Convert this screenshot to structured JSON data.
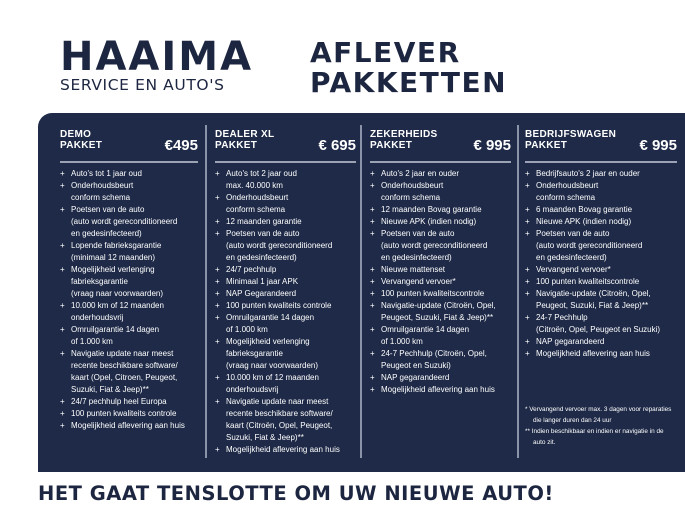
{
  "brand": {
    "name": "HAAIMA",
    "subtitle": "SERVICE EN AUTO'S"
  },
  "title": {
    "line1": "AFLEVER",
    "line2": "PAKKETTEN"
  },
  "packages": [
    {
      "name1": "DEMO",
      "name2": "PAKKET",
      "price": "€495",
      "items": [
        "Auto's tot 1 jaar oud",
        "Onderhoudsbeurt\nconform schema",
        "Poetsen van de auto\n(auto wordt gereconditioneerd\nen gedesinfecteerd)",
        "Lopende fabrieksgarantie\n(minimaal 12 maanden)",
        "Mogelijkheid verlenging\nfabrieksgarantie\n(vraag naar voorwaarden)",
        "10.000 km of 12 maanden\nonderhoudsvrij",
        "Omruilgarantie 14 dagen\nof 1.000 km",
        "Navigatie update naar meest\nrecente beschikbare software/\nkaart (Opel, Citroen, Peugeot,\nSuzuki, Fiat & Jeep)**",
        "24/7 pechhulp heel Europa",
        "100 punten kwaliteits controle",
        "Mogelijkheid aflevering aan huis"
      ]
    },
    {
      "name1": "DEALER XL",
      "name2": "PAKKET",
      "price": "€ 695",
      "items": [
        "Auto's tot 2 jaar oud\nmax. 40.000 km",
        "Onderhoudsbeurt\nconform schema",
        "12 maanden garantie",
        "Poetsen van de auto\n(auto wordt gereconditioneerd\nen gedesinfecteerd)",
        "24/7 pechhulp",
        "Minimaal 1 jaar APK",
        "NAP Gegarandeerd",
        "100 punten kwaliteits controle",
        "Omruilgarantie 14 dagen\nof 1.000 km",
        "Mogelijkheid verlenging\nfabrieksgarantie\n(vraag naar voorwaarden)",
        "10.000 km of 12 maanden\nonderhoudsvrij",
        "Navigatie update naar meest\nrecente beschikbare software/\nkaart (Citroën, Opel, Peugeot,\nSuzuki, Fiat & Jeep)**",
        "Mogelijkheid aflevering aan huis"
      ]
    },
    {
      "name1": "ZEKERHEIDS",
      "name2": "PAKKET",
      "price": "€ 995",
      "items": [
        "Auto's 2 jaar en ouder",
        "Onderhoudsbeurt\nconform schema",
        "12 maanden Bovag garantie",
        "Nieuwe APK (indien nodig)",
        "Poetsen van de auto\n(auto wordt gereconditioneerd\nen gedesinfecteerd)",
        "Nieuwe mattenset",
        "Vervangend vervoer*",
        "100 punten kwaliteitscontrole",
        "Navigatie-update (Citroën, Opel,\nPeugeot, Suzuki, Fiat & Jeep)**",
        "Omruilgarantie 14 dagen\nof 1.000 km",
        "24-7 Pechhulp (Citroën, Opel,\nPeugeot en Suzuki)",
        "NAP gegarandeerd",
        "Mogelijkheid aflevering aan huis"
      ]
    },
    {
      "name1": "BEDRIJFSWAGEN",
      "name2": "PAKKET",
      "price": "€ 995",
      "items": [
        "Bedrijfsauto's 2 jaar en ouder",
        "Onderhoudsbeurt\nconform schema",
        "6 maanden Bovag garantie",
        "Nieuwe APK (indien nodig)",
        "Poetsen van de auto\n(auto wordt gereconditioneerd\nen gedesinfecteerd)",
        "Vervangend vervoer*",
        "100 punten kwaliteitscontrole",
        "Navigatie-update (Citroën, Opel,\nPeugeot, Suzuki, Fiat & Jeep)**",
        "24-7 Pechhulp\n(Citroën, Opel, Peugeot en Suzuki)",
        "NAP gegarandeerd",
        "Mogelijkheid aflevering aan huis"
      ]
    }
  ],
  "notes": [
    "* Vervangend vervoer max. 3 dagen voor reparaties die langer duren dan 24 uur",
    "** Indien beschikbaar en indien er navigatie in de auto zit."
  ],
  "tagline": "HET GAAT TENSLOTTE OM UW NIEUWE AUTO!",
  "colors": {
    "panel": "#1e2a47",
    "text": "#1d2640"
  }
}
